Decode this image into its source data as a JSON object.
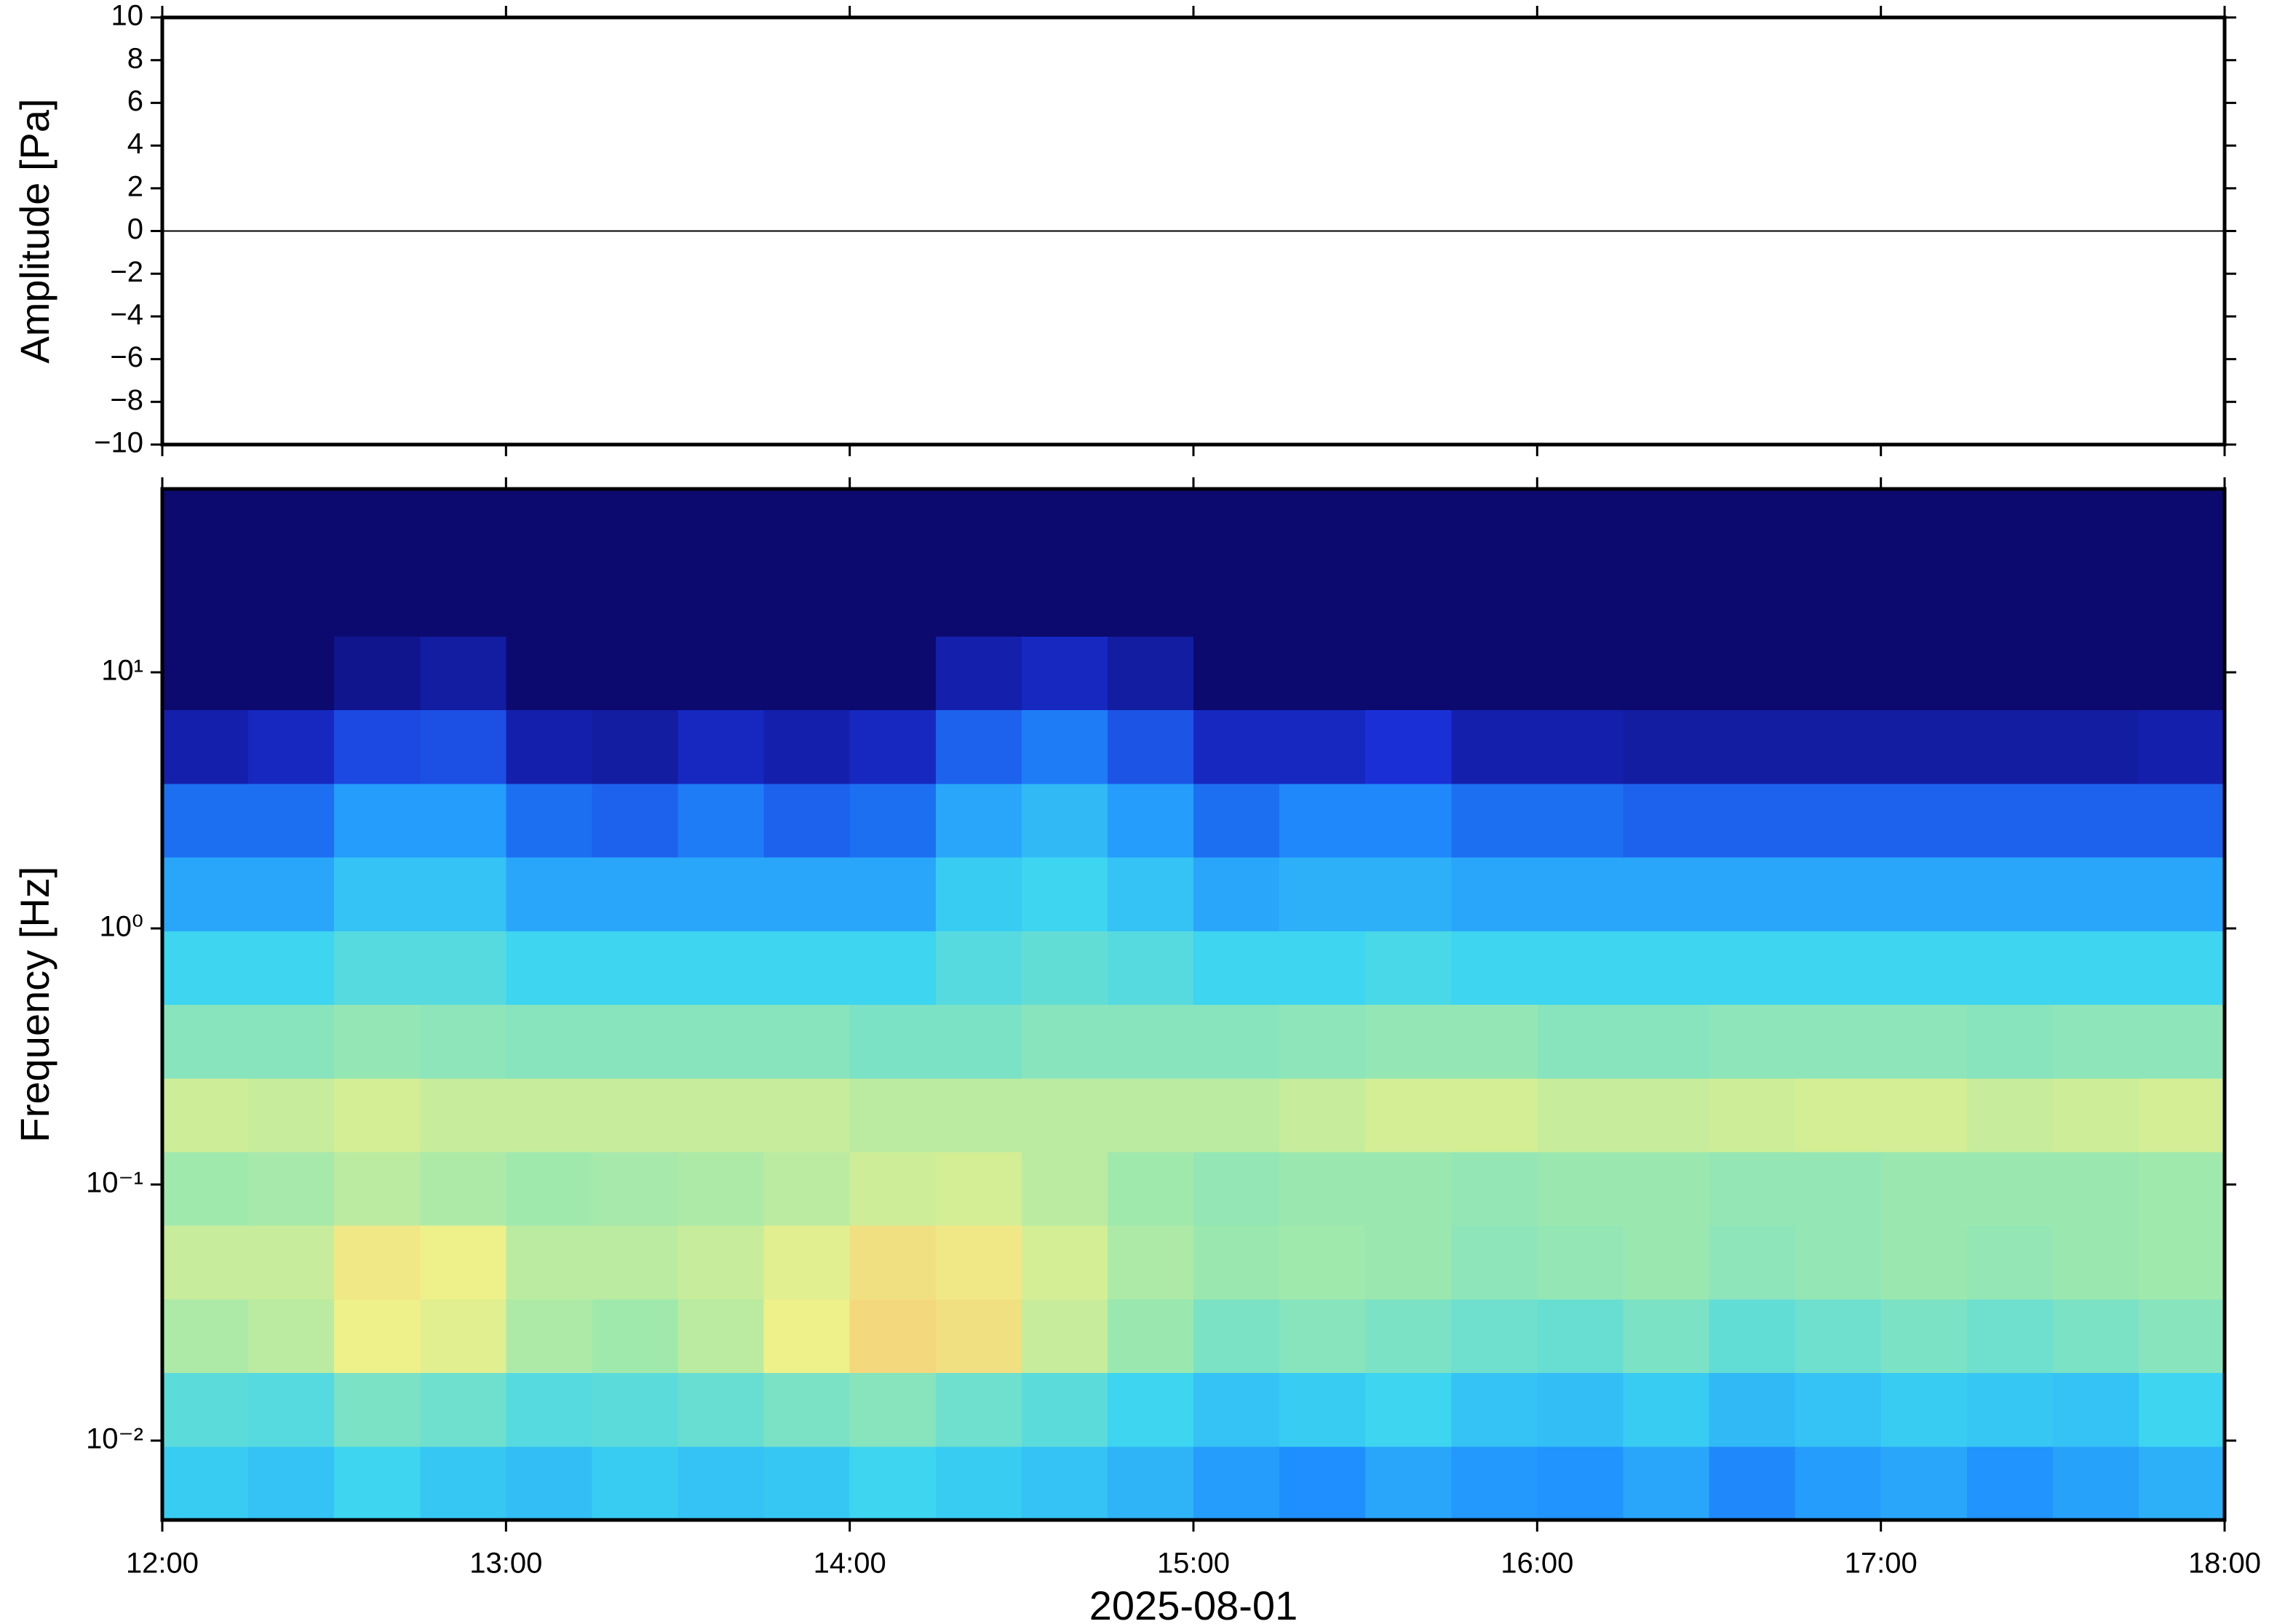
{
  "chart_data": [
    {
      "type": "line",
      "ylabel": "Amplitude [Pa]",
      "x": [
        12,
        18
      ],
      "series": [
        {
          "name": "Amplitude",
          "color": "#000000",
          "values": [
            0,
            0
          ]
        }
      ],
      "xlim": [
        12,
        18
      ],
      "xticks": [
        12,
        13,
        14,
        15,
        16,
        17,
        18
      ],
      "ylim": [
        -10,
        10
      ],
      "yticks": [
        {
          "value": -10,
          "label": "−10"
        },
        {
          "value": -8,
          "label": "−8"
        },
        {
          "value": -6,
          "label": "−6"
        },
        {
          "value": -4,
          "label": "−4"
        },
        {
          "value": -2,
          "label": "−2"
        },
        0,
        2,
        4,
        6,
        8,
        10
      ]
    },
    {
      "type": "heatmap",
      "ylabel": "Frequency [Hz]",
      "xlabel": "2025-08-01",
      "log_y": true,
      "xlim": [
        12,
        18
      ],
      "xticks": [
        {
          "value": 12,
          "label": "12:00"
        },
        {
          "value": 13,
          "label": "13:00"
        },
        {
          "value": 14,
          "label": "14:00"
        },
        {
          "value": 15,
          "label": "15:00"
        },
        {
          "value": 16,
          "label": "16:00"
        },
        {
          "value": 17,
          "label": "17:00"
        },
        {
          "value": 18,
          "label": "18:00"
        }
      ],
      "ylim": [
        0.0049,
        52
      ],
      "yticks": [
        {
          "value": 0.01,
          "label": "10⁻²"
        },
        {
          "value": 0.1,
          "label": "10⁻¹"
        },
        {
          "value": 1,
          "label": "10⁰"
        },
        {
          "value": 10,
          "label": "10¹"
        }
      ],
      "colorscale": [
        [
          0,
          "#0c0a6e"
        ],
        [
          0.1,
          "#1a2fd6"
        ],
        [
          0.25,
          "#1f8fff"
        ],
        [
          0.4,
          "#3dd5f0"
        ],
        [
          0.55,
          "#9ae8b0"
        ],
        [
          0.68,
          "#eef08a"
        ],
        [
          0.8,
          "#f8c070"
        ]
      ],
      "z": [
        [
          0.38,
          0.36,
          0.4,
          0.37,
          0.35,
          0.38,
          0.36,
          0.37,
          0.4,
          0.38,
          0.36,
          0.33,
          0.28,
          0.25,
          0.3,
          0.27,
          0.26,
          0.3,
          0.24,
          0.28,
          0.3,
          0.26,
          0.29,
          0.32
        ],
        [
          0.45,
          0.44,
          0.5,
          0.48,
          0.44,
          0.45,
          0.47,
          0.5,
          0.52,
          0.48,
          0.45,
          0.4,
          0.36,
          0.38,
          0.4,
          0.36,
          0.35,
          0.38,
          0.34,
          0.36,
          0.38,
          0.37,
          0.36,
          0.4
        ],
        [
          0.58,
          0.6,
          0.68,
          0.66,
          0.58,
          0.56,
          0.6,
          0.68,
          0.74,
          0.72,
          0.62,
          0.55,
          0.5,
          0.52,
          0.5,
          0.48,
          0.47,
          0.5,
          0.46,
          0.48,
          0.5,
          0.48,
          0.5,
          0.52
        ],
        [
          0.62,
          0.62,
          0.7,
          0.68,
          0.6,
          0.6,
          0.62,
          0.66,
          0.72,
          0.7,
          0.64,
          0.58,
          0.55,
          0.56,
          0.55,
          0.53,
          0.54,
          0.55,
          0.53,
          0.54,
          0.55,
          0.54,
          0.55,
          0.56
        ],
        [
          0.56,
          0.57,
          0.6,
          0.58,
          0.56,
          0.57,
          0.58,
          0.6,
          0.63,
          0.64,
          0.6,
          0.56,
          0.54,
          0.55,
          0.55,
          0.54,
          0.55,
          0.55,
          0.54,
          0.54,
          0.55,
          0.55,
          0.55,
          0.56
        ],
        [
          0.63,
          0.62,
          0.64,
          0.62,
          0.62,
          0.62,
          0.62,
          0.62,
          0.6,
          0.6,
          0.6,
          0.6,
          0.6,
          0.62,
          0.64,
          0.64,
          0.62,
          0.62,
          0.63,
          0.64,
          0.64,
          0.62,
          0.63,
          0.64
        ],
        [
          0.52,
          0.52,
          0.54,
          0.53,
          0.52,
          0.52,
          0.52,
          0.52,
          0.5,
          0.5,
          0.52,
          0.52,
          0.52,
          0.53,
          0.54,
          0.54,
          0.52,
          0.52,
          0.53,
          0.53,
          0.53,
          0.52,
          0.53,
          0.53
        ],
        [
          0.4,
          0.4,
          0.44,
          0.44,
          0.4,
          0.4,
          0.4,
          0.4,
          0.4,
          0.44,
          0.46,
          0.44,
          0.4,
          0.4,
          0.42,
          0.4,
          0.4,
          0.4,
          0.4,
          0.4,
          0.4,
          0.4,
          0.4,
          0.4
        ],
        [
          0.3,
          0.3,
          0.36,
          0.36,
          0.3,
          0.3,
          0.3,
          0.3,
          0.3,
          0.38,
          0.4,
          0.36,
          0.3,
          0.32,
          0.32,
          0.3,
          0.3,
          0.3,
          0.3,
          0.3,
          0.3,
          0.3,
          0.3,
          0.3
        ],
        [
          0.2,
          0.2,
          0.28,
          0.28,
          0.2,
          0.18,
          0.22,
          0.18,
          0.2,
          0.3,
          0.34,
          0.28,
          0.2,
          0.24,
          0.24,
          0.2,
          0.2,
          0.18,
          0.18,
          0.18,
          0.18,
          0.18,
          0.18,
          0.18
        ],
        [
          0.06,
          0.08,
          0.14,
          0.15,
          0.06,
          0.05,
          0.08,
          0.06,
          0.08,
          0.18,
          0.22,
          0.16,
          0.08,
          0.08,
          0.1,
          0.06,
          0.06,
          0.05,
          0.05,
          0.05,
          0.05,
          0.05,
          0.05,
          0.06
        ],
        [
          0,
          0,
          0.03,
          0.05,
          0,
          0,
          0,
          0,
          0,
          0.06,
          0.08,
          0.05,
          0,
          0,
          0,
          0,
          0,
          0,
          0,
          0,
          0,
          0,
          0,
          0
        ],
        [
          0,
          0,
          0,
          0,
          0,
          0,
          0,
          0,
          0,
          0,
          0,
          0,
          0,
          0,
          0,
          0,
          0,
          0,
          0,
          0,
          0,
          0,
          0,
          0
        ],
        [
          0,
          0,
          0,
          0,
          0,
          0,
          0,
          0,
          0,
          0,
          0,
          0,
          0,
          0,
          0,
          0,
          0,
          0,
          0,
          0,
          0,
          0,
          0,
          0
        ]
      ]
    }
  ]
}
